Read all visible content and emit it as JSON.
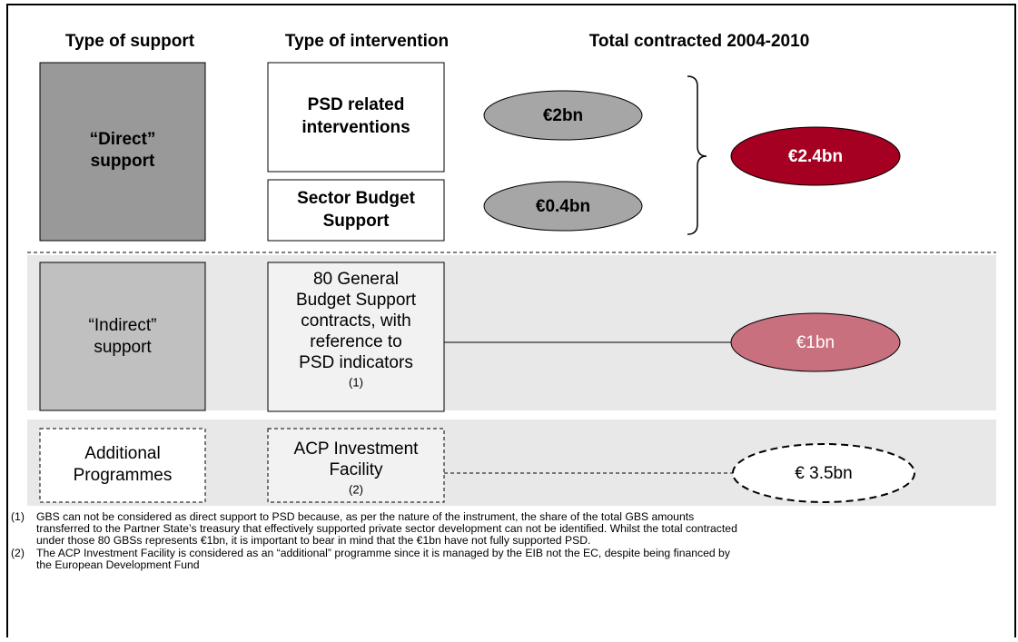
{
  "headers": [
    "Type of support",
    "Type of intervention",
    "Total contracted 2004-2010"
  ],
  "direct": {
    "support": [
      "“Direct”",
      "support"
    ],
    "interventions": [
      {
        "label": [
          "PSD related",
          "interventions"
        ],
        "amount": "€2bn"
      },
      {
        "label": [
          "Sector Budget",
          "Support"
        ],
        "amount": "€0.4bn"
      }
    ],
    "total": "€2.4bn"
  },
  "indirect": {
    "support": [
      "“Indirect”",
      "support"
    ],
    "intervention": [
      "80 General",
      "Budget Support",
      "contracts, with",
      "reference to",
      "PSD indicators"
    ],
    "note_ref": "(1)",
    "amount": "€1bn"
  },
  "additional": {
    "support": [
      "Additional",
      "Programmes"
    ],
    "intervention": [
      "ACP Investment",
      "Facility"
    ],
    "note_ref": "(2)",
    "amount": "€ 3.5bn"
  },
  "notes": [
    {
      "number": "(1)",
      "lines": [
        "GBS can not be considered as direct support to PSD because, as per the nature of the instrument, the share of the total GBS amounts",
        "transferred to the Partner State’s treasury that effectively supported private sector development can not be identified. Whilst the total contracted",
        "under those 80 GBSs represents €1bn, it is important to bear in mind that the €1bn have not fully supported PSD."
      ]
    },
    {
      "number": "(2)",
      "lines": [
        "The ACP Investment Facility is considered as an “additional” programme since it is managed by the EIB  not the EC, despite being financed by",
        "the European Development Fund"
      ]
    }
  ]
}
